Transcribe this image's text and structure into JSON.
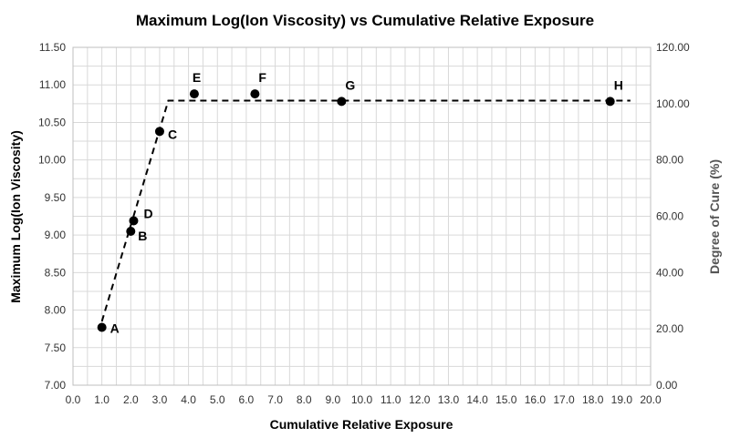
{
  "chart_data": {
    "type": "scatter",
    "title": "Maximum Log(Ion Viscosity) vs Cumulative Relative Exposure",
    "xlabel": "Cumulative Relative Exposure",
    "ylabel": "Maximum Log(Ion Viscosity)",
    "y2label": "Degree of Cure (%)",
    "xlim": [
      0,
      20
    ],
    "ylim": [
      7.0,
      11.5
    ],
    "y2lim": [
      0,
      120
    ],
    "x_ticks": [
      "0.0",
      "1.0",
      "2.0",
      "3.0",
      "4.0",
      "5.0",
      "6.0",
      "7.0",
      "8.0",
      "9.0",
      "10.0",
      "11.0",
      "12.0",
      "13.0",
      "14.0",
      "15.0",
      "16.0",
      "17.0",
      "18.0",
      "19.0",
      "20.0"
    ],
    "y_ticks": [
      "7.00",
      "7.50",
      "8.00",
      "8.50",
      "9.00",
      "9.50",
      "10.00",
      "10.50",
      "11.00",
      "11.50"
    ],
    "y2_ticks": [
      "0.00",
      "20.00",
      "40.00",
      "60.00",
      "80.00",
      "100.00",
      "120.00"
    ],
    "grid": true,
    "points": [
      {
        "label": "A",
        "x": 1.0,
        "y": 7.77
      },
      {
        "label": "B",
        "x": 2.0,
        "y": 9.05
      },
      {
        "label": "D",
        "x": 2.1,
        "y": 9.19
      },
      {
        "label": "C",
        "x": 3.0,
        "y": 10.38
      },
      {
        "label": "E",
        "x": 4.2,
        "y": 10.88
      },
      {
        "label": "F",
        "x": 6.3,
        "y": 10.88
      },
      {
        "label": "G",
        "x": 9.3,
        "y": 10.78
      },
      {
        "label": "H",
        "x": 18.6,
        "y": 10.78
      }
    ],
    "trend_line": {
      "style": "dashed",
      "x": [
        1.0,
        3.3,
        19.3
      ],
      "y": [
        7.85,
        10.79,
        10.79
      ]
    }
  }
}
